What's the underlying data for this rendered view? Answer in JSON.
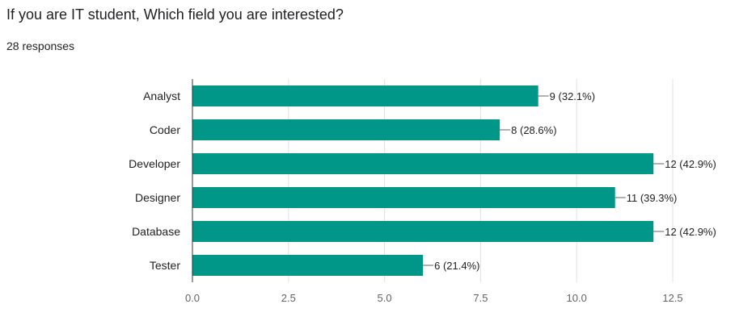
{
  "question": {
    "title": "If you are IT student, Which field you are interested?",
    "responses": "28 responses"
  },
  "chart_data": {
    "type": "bar",
    "orientation": "horizontal",
    "categories": [
      "Analyst",
      "Coder",
      "Developer",
      "Designer",
      "Database",
      "Tester"
    ],
    "values": [
      9,
      8,
      12,
      11,
      12,
      6
    ],
    "data_labels": [
      "9 (32.1%)",
      "8 (28.6%)",
      "12 (42.9%)",
      "11 (39.3%)",
      "12 (42.9%)",
      "6 (21.4%)"
    ],
    "xlim": [
      0,
      12.5
    ],
    "xticks": [
      0,
      2.5,
      5,
      7.5,
      10,
      12.5
    ],
    "xtick_labels": [
      "0.0",
      "2.5",
      "5.0",
      "7.5",
      "10.0",
      "12.5"
    ],
    "grid": true,
    "bar_color": "#009688"
  }
}
